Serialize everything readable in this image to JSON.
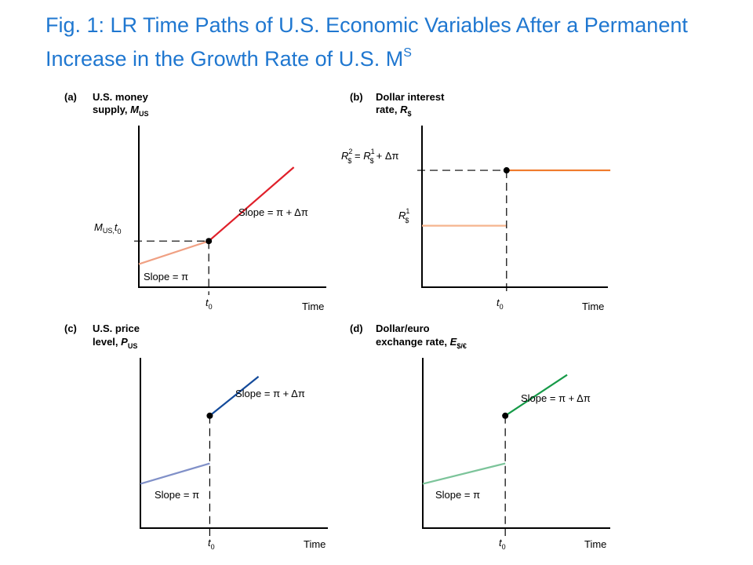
{
  "title": {
    "main": "Fig. 1: LR Time Paths of U.S. Economic Variables After a Permanent Increase in the Growth Rate of U.S. M",
    "sup": "S"
  },
  "chart_data": [
    {
      "panel": "(a)",
      "type": "line",
      "title_lines": [
        "U.S. money",
        "supply,"
      ],
      "var_symbol": "M",
      "var_sub": "US",
      "xlabel": "Time",
      "tick_label": "t",
      "tick_sub": "0",
      "y_tick_label": "M",
      "y_tick_sub": "US,",
      "y_tick_italic": "t",
      "y_tick_italic_sub": "0",
      "xlim": [
        0,
        10
      ],
      "ylim": [
        0,
        10
      ],
      "t0": 3.7,
      "segments": [
        {
          "x": [
            0,
            3.7
          ],
          "y": [
            1.5,
            3.0
          ],
          "color": "#f0a083"
        },
        {
          "x": [
            3.7,
            8.2
          ],
          "y": [
            3.0,
            7.8
          ],
          "color": "#e0202a"
        }
      ],
      "jump_dot": [
        3.7,
        3.0
      ],
      "annotations": [
        "Slope = π",
        "Slope = π + Δπ"
      ]
    },
    {
      "panel": "(b)",
      "type": "line",
      "title_lines": [
        "Dollar interest",
        "rate,"
      ],
      "var_symbol": "R",
      "var_sub": "$",
      "xlabel": "Time",
      "tick_label": "t",
      "tick_sub": "0",
      "r2_label": "R",
      "r2_sup": "2",
      "r2_sub": "$",
      "r1_label": "R",
      "r1_sup": "1",
      "r1_sub": "$",
      "r2_rhs": "+ Δπ",
      "xlim": [
        0,
        10
      ],
      "ylim": [
        0,
        10
      ],
      "t0": 4.4,
      "segments": [
        {
          "x": [
            0,
            4.4
          ],
          "y": [
            4.0,
            4.0
          ],
          "color": "#f6b48e"
        },
        {
          "x": [
            4.4,
            9.8
          ],
          "y": [
            7.6,
            7.6
          ],
          "color": "#f07a2b"
        }
      ],
      "jump_dot": [
        4.4,
        7.6
      ]
    },
    {
      "panel": "(c)",
      "type": "line",
      "title_lines": [
        "U.S. price",
        "level,"
      ],
      "var_symbol": "P",
      "var_sub": "US",
      "xlabel": "Time",
      "tick_label": "t",
      "tick_sub": "0",
      "xlim": [
        0,
        10
      ],
      "ylim": [
        0,
        10
      ],
      "t0": 3.7,
      "segments": [
        {
          "x": [
            0,
            3.7
          ],
          "y": [
            2.6,
            3.8
          ],
          "color": "#8090c8"
        },
        {
          "x": [
            3.7,
            6.3
          ],
          "y": [
            6.6,
            8.9
          ],
          "color": "#134a9a"
        }
      ],
      "jump_dot": [
        3.7,
        6.6
      ],
      "annotations": [
        "Slope = π",
        "Slope = π + Δπ"
      ]
    },
    {
      "panel": "(d)",
      "type": "line",
      "title_lines": [
        "Dollar/euro",
        "exchange rate,"
      ],
      "var_symbol": "E",
      "var_sub": "$/€",
      "xlabel": "Time",
      "tick_label": "t",
      "tick_sub": "0",
      "xlim": [
        0,
        10
      ],
      "ylim": [
        0,
        10
      ],
      "t0": 4.4,
      "segments": [
        {
          "x": [
            0,
            4.4
          ],
          "y": [
            2.6,
            3.8
          ],
          "color": "#7cc49a"
        },
        {
          "x": [
            4.4,
            7.7
          ],
          "y": [
            6.6,
            9.0
          ],
          "color": "#169a48"
        }
      ],
      "jump_dot": [
        4.4,
        6.6
      ],
      "annotations": [
        "Slope = π",
        "Slope = π + Δπ"
      ]
    }
  ]
}
